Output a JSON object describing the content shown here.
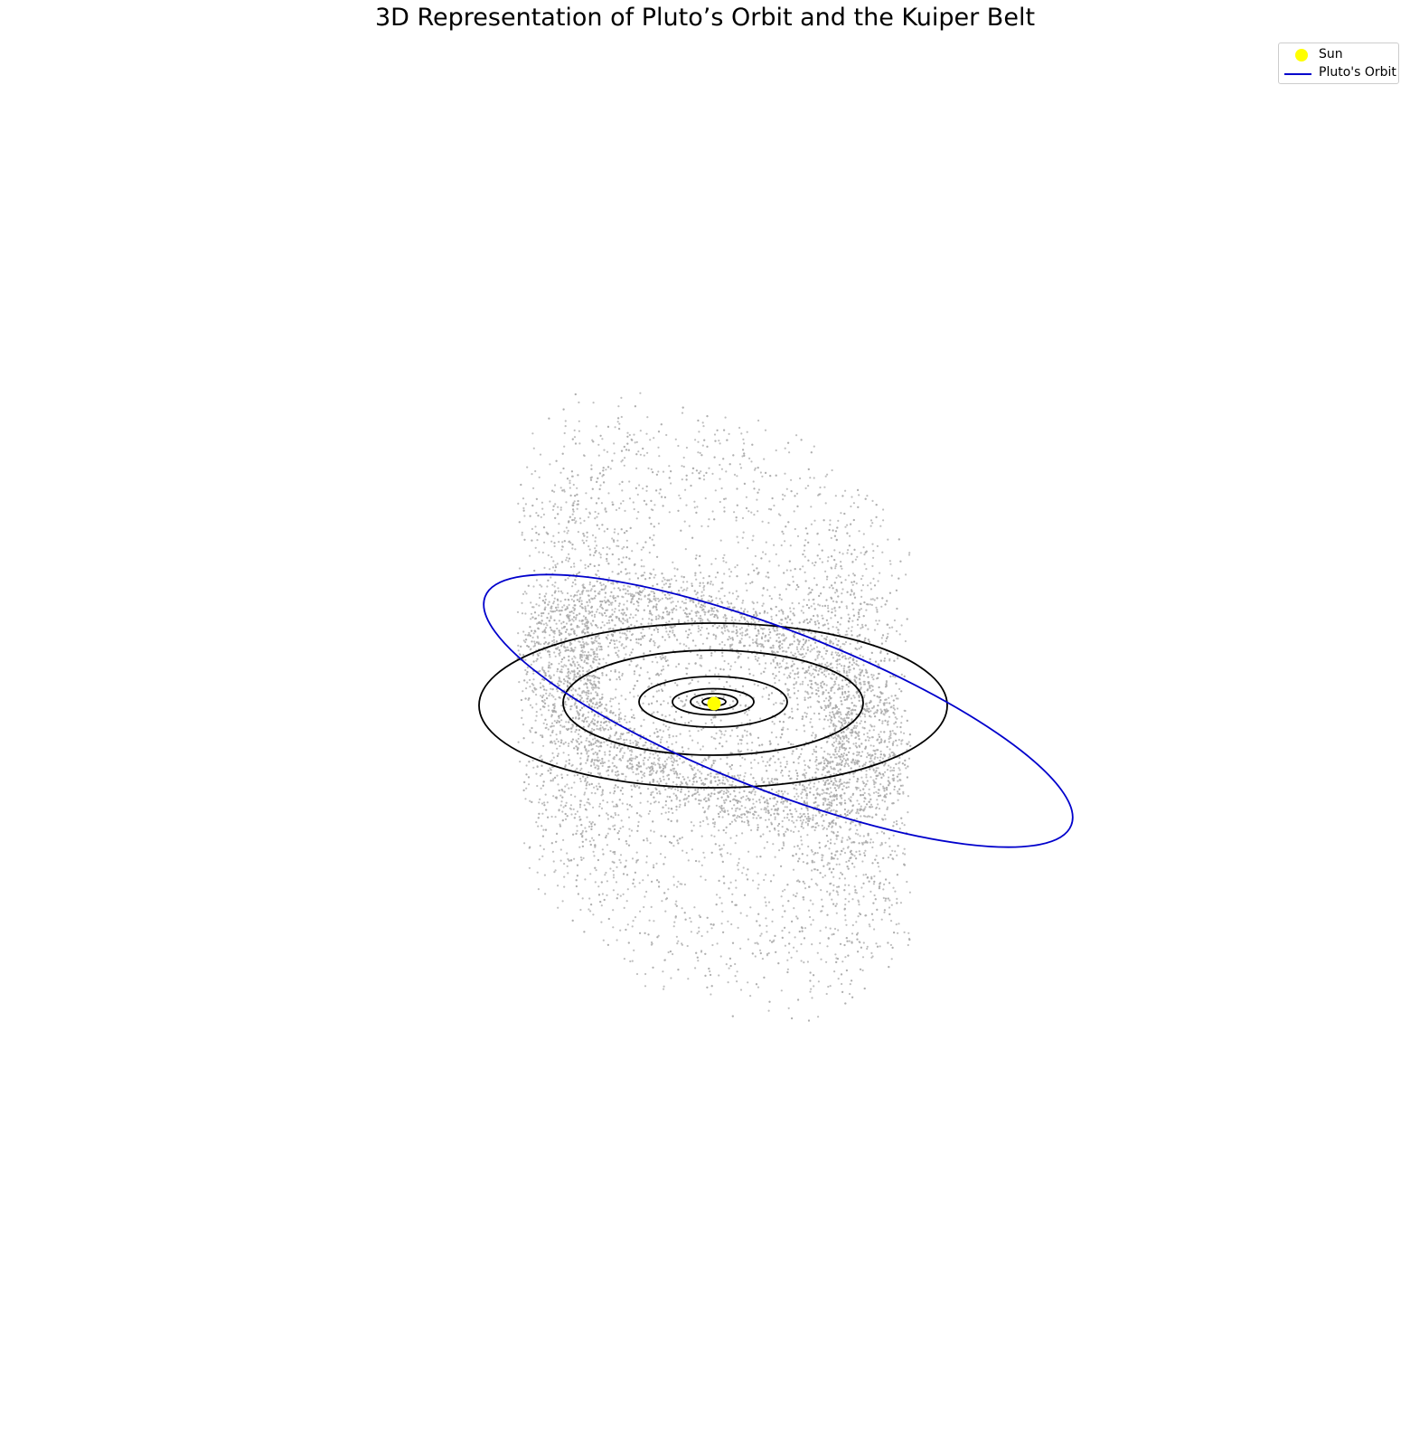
{
  "chart_data": {
    "type": "scatter",
    "title": "3D Representation of Pluto’s Orbit and the Kuiper Belt",
    "axes_visible": false,
    "legend_placement": "top-right",
    "series": [
      {
        "name": "Sun",
        "kind": "point",
        "color": "#ffff00",
        "x": 0,
        "y": 0,
        "z": 0
      },
      {
        "name": "Pluto's Orbit",
        "kind": "orbit",
        "color": "#0000cc",
        "semi_major_axis_au": 39.5,
        "eccentricity": 0.25,
        "inclination_deg": 17
      }
    ],
    "planet_orbits_au": [
      1,
      1.5,
      5.2,
      9.5,
      19.2,
      30.1
    ],
    "planet_orbit_color": "#000000",
    "kuiper_belt": {
      "color": "#aaaaaa",
      "inner_radius_au": 30,
      "outer_radius_au": 50
    }
  }
}
